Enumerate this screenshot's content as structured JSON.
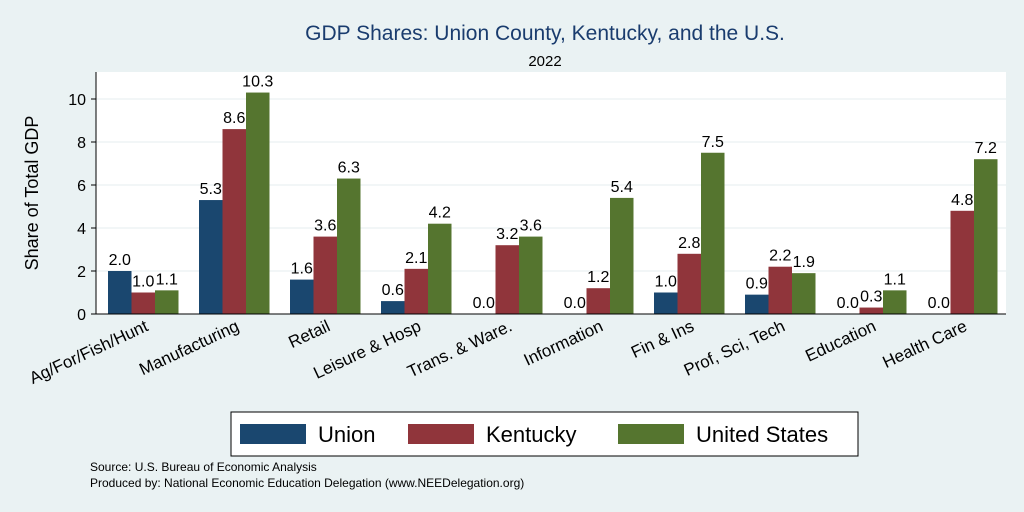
{
  "chart_data": {
    "type": "bar",
    "title": "GDP Shares: Union County, Kentucky, and the U.S.",
    "subtitle": "2022",
    "ylabel": "Share of Total GDP",
    "xlabel": "",
    "ylim": [
      0,
      11
    ],
    "yticks": [
      0,
      2,
      4,
      6,
      8,
      10
    ],
    "grid": true,
    "legend_position": "bottom",
    "categories": [
      "Ag/For/Fish/Hunt",
      "Manufacturing",
      "Retail",
      "Leisure & Hosp",
      "Trans. & Ware.",
      "Information",
      "Fin & Ins",
      "Prof, Sci, Tech",
      "Education",
      "Health Care"
    ],
    "series": [
      {
        "name": "Union",
        "color": "#1a476f",
        "values": [
          2.0,
          5.3,
          1.6,
          0.6,
          0.0,
          0.0,
          1.0,
          0.9,
          0.0,
          0.0
        ]
      },
      {
        "name": "Kentucky",
        "color": "#90353b",
        "values": [
          1.0,
          8.6,
          3.6,
          2.1,
          3.2,
          1.2,
          2.8,
          2.2,
          0.3,
          4.8
        ]
      },
      {
        "name": "United States",
        "color": "#55752f",
        "values": [
          1.1,
          10.3,
          6.3,
          4.2,
          3.6,
          5.4,
          7.5,
          1.9,
          1.1,
          7.2
        ]
      }
    ],
    "source_lines": [
      "Source: U.S. Bureau of Economic Analysis",
      "Produced by: National Economic Education Delegation (www.NEEDelegation.org)"
    ]
  }
}
